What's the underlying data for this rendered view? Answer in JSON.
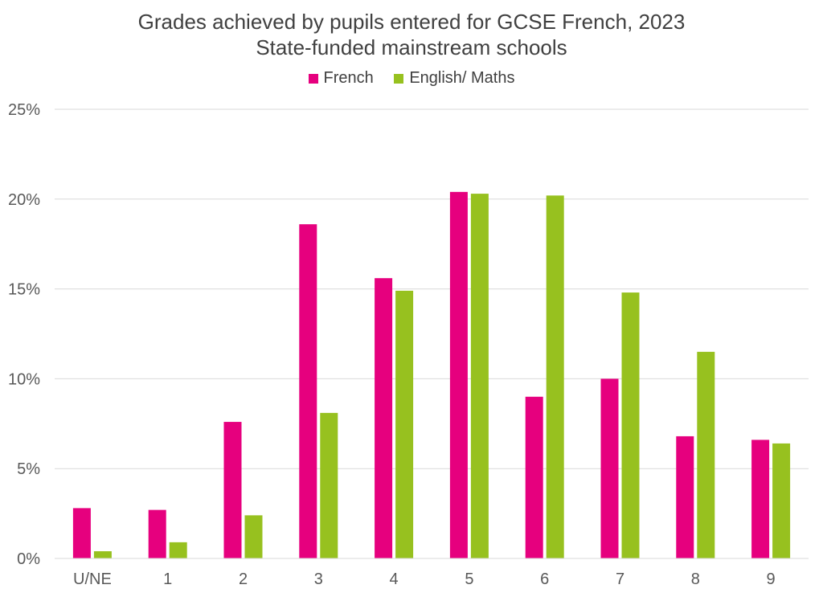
{
  "chart_data": {
    "type": "bar",
    "title": "Grades achieved by pupils entered for GCSE French, 2023",
    "subtitle": "State-funded mainstream schools",
    "categories": [
      "U/NE",
      "1",
      "2",
      "3",
      "4",
      "5",
      "6",
      "7",
      "8",
      "9"
    ],
    "series": [
      {
        "name": "French",
        "color": "#E6007E",
        "values": [
          2.8,
          2.7,
          7.6,
          18.6,
          15.6,
          20.4,
          9.0,
          10.0,
          6.8,
          6.6
        ]
      },
      {
        "name": "English/ Maths",
        "color": "#97C11F",
        "values": [
          0.4,
          0.9,
          2.4,
          8.1,
          14.9,
          20.3,
          20.2,
          14.8,
          11.5,
          6.4
        ]
      }
    ],
    "ylim": [
      0,
      25
    ],
    "yticks": [
      "0%",
      "5%",
      "10%",
      "15%",
      "20%",
      "25%"
    ],
    "ytick_values": [
      0,
      5,
      10,
      15,
      20,
      25
    ],
    "xlabel": "",
    "ylabel": "",
    "grid": true,
    "legend_position": "top-center"
  }
}
